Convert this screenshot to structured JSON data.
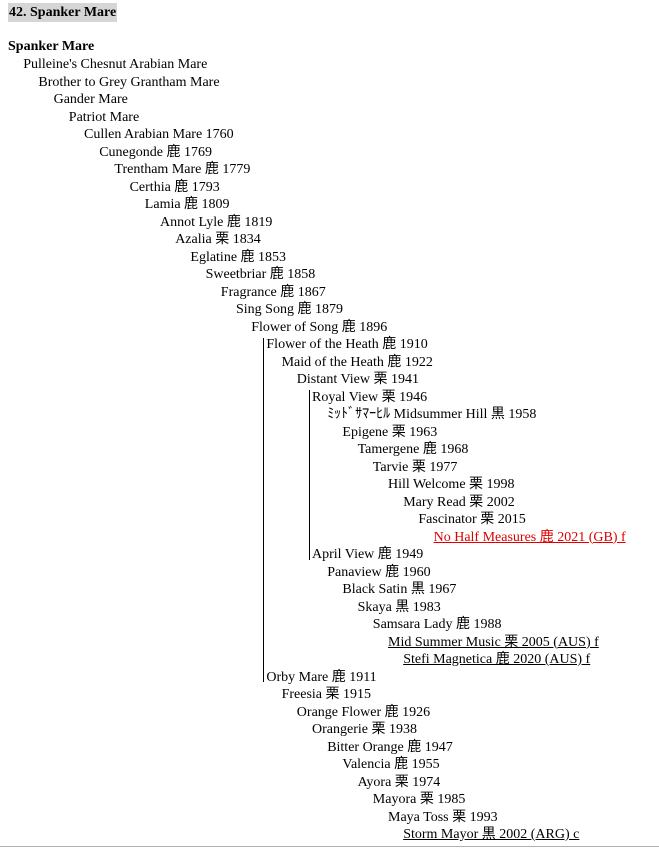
{
  "heading": "42. Spanker Mare",
  "root": "Spanker Mare",
  "rows": [
    {
      "text": "Pulleine's Chesnut Arabian Mare"
    },
    {
      "text": "Brother to Grey Grantham Mare"
    },
    {
      "text": "Gander Mare"
    },
    {
      "text": "Patriot Mare"
    },
    {
      "text": "Cullen Arabian Mare 1760"
    },
    {
      "text": "Cunegonde  鹿 1769"
    },
    {
      "text": "Trentham Mare  鹿 1779"
    },
    {
      "text": "Certhia  鹿 1793"
    },
    {
      "text": "Lamia  鹿 1809"
    },
    {
      "text": "Annot Lyle  鹿 1819"
    },
    {
      "text": "Azalia  栗 1834"
    },
    {
      "text": "Eglatine  鹿 1853"
    },
    {
      "text": "Sweetbriar  鹿 1858"
    },
    {
      "text": "Fragrance  鹿 1867"
    },
    {
      "text": "Sing Song  鹿 1879"
    },
    {
      "text": "Flower of Song  鹿 1896"
    },
    {
      "text": "Flower of the Heath  鹿 1910"
    },
    {
      "text": "Maid of the Heath  鹿 1922"
    },
    {
      "text": "Distant View  栗 1941"
    },
    {
      "text": "Royal View  栗 1946"
    },
    {
      "text": "ﾐｯﾄﾞｻﾏｰﾋﾙ Midsummer Hill  黒 1958"
    },
    {
      "text": "Epigene  栗 1963"
    },
    {
      "text": "Tamergene  鹿 1968"
    },
    {
      "text": "Tarvie  栗 1977"
    },
    {
      "text": "Hill Welcome  栗 1998"
    },
    {
      "text": "Mary Read  栗 2002"
    },
    {
      "text": "Fascinator  栗 2015"
    },
    {
      "text": "No Half Measures  鹿 2021 (GB) f",
      "link": true,
      "red": true
    },
    {
      "text": "April View  鹿 1949"
    },
    {
      "text": "Panaview  鹿 1960"
    },
    {
      "text": "Black Satin  黒 1967"
    },
    {
      "text": "Skaya  黒 1983"
    },
    {
      "text": "Samsara Lady  鹿 1988"
    },
    {
      "text": "Mid Summer Music  栗 2005 (AUS) f",
      "link": true
    },
    {
      "text": "Stefi Magnetica  鹿 2020 (AUS) f",
      "link": true
    },
    {
      "text": "Orby Mare  鹿 1911"
    },
    {
      "text": "Freesia  栗 1915"
    },
    {
      "text": "Orange Flower  鹿 1926"
    },
    {
      "text": "Orangerie  栗 1938"
    },
    {
      "text": "Bitter Orange  鹿 1947"
    },
    {
      "text": "Valencia  鹿 1955"
    },
    {
      "text": "Ayora  栗 1974"
    },
    {
      "text": "Mayora  栗 1985"
    },
    {
      "text": "Maya Toss  栗 1993"
    },
    {
      "text": "Storm Mayor  黒 2002 (ARG) c",
      "link": true
    }
  ]
}
